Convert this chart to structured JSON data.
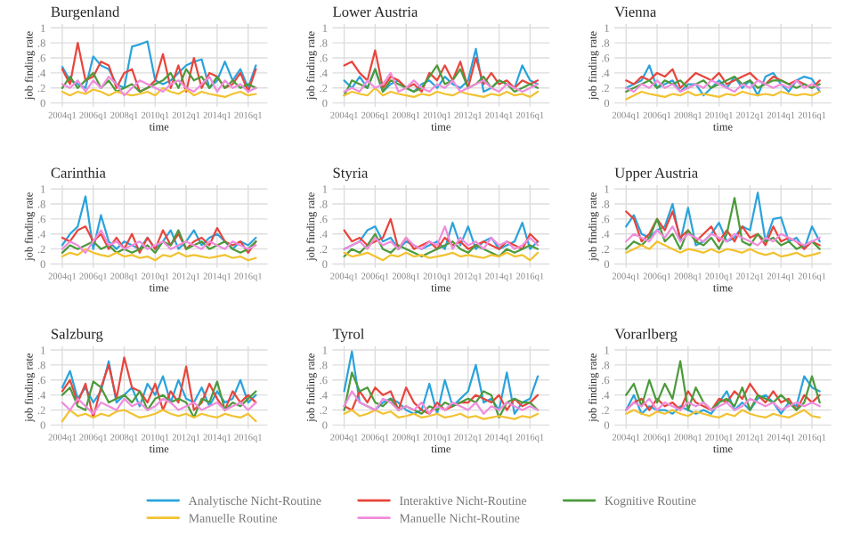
{
  "chart_data": [
    {
      "type": "line",
      "title": "Burgenland",
      "xlabel": "time",
      "ylabel": "job finding rate",
      "grid": true,
      "ylim": [
        -0.05,
        1.05
      ],
      "yticks": [
        0,
        {
          "value": 0.2,
          "label": ".2"
        },
        {
          "value": 0.4,
          "label": ".4"
        },
        {
          "value": 0.6,
          "label": ".6"
        },
        {
          "value": 0.8,
          "label": ".8"
        },
        1
      ],
      "categories": [
        "2004q1",
        null,
        null,
        null,
        "2006q1",
        null,
        null,
        null,
        "2008q1",
        null,
        null,
        null,
        "2010q1",
        null,
        null,
        null,
        "2012q1",
        null,
        null,
        null,
        "2014q1",
        null,
        null,
        null,
        "2016q1",
        null
      ],
      "series": [
        {
          "color": "#2ba3dc",
          "values": [
            0.48,
            0.3,
            0.25,
            0.2,
            0.62,
            0.5,
            0.45,
            0.25,
            0.2,
            0.75,
            0.78,
            0.82,
            0.3,
            0.25,
            0.3,
            0.4,
            0.5,
            0.55,
            0.58,
            0.2,
            0.3,
            0.55,
            0.3,
            0.45,
            0.2,
            0.5
          ]
        },
        {
          "color": "#e8453c",
          "values": [
            0.45,
            0.25,
            0.8,
            0.3,
            0.35,
            0.55,
            0.5,
            0.2,
            0.4,
            0.45,
            0.15,
            0.2,
            0.3,
            0.65,
            0.2,
            0.5,
            0.15,
            0.6,
            0.2,
            0.4,
            0.35,
            0.2,
            0.25,
            0.4,
            0.15,
            0.45
          ]
        },
        {
          "color": "#4c9a3c",
          "values": [
            0.2,
            0.35,
            0.2,
            0.3,
            0.4,
            0.2,
            0.3,
            0.15,
            0.2,
            0.25,
            0.15,
            0.2,
            0.25,
            0.3,
            0.4,
            0.2,
            0.45,
            0.3,
            0.35,
            0.2,
            0.35,
            0.2,
            0.3,
            0.2,
            0.25,
            0.2
          ]
        },
        {
          "color": "#f2c230",
          "values": [
            0.15,
            0.1,
            0.15,
            0.12,
            0.18,
            0.15,
            0.1,
            0.15,
            0.12,
            0.1,
            0.12,
            0.15,
            0.1,
            0.2,
            0.15,
            0.12,
            0.18,
            0.1,
            0.15,
            0.12,
            0.1,
            0.08,
            0.12,
            0.15,
            0.1,
            0.12
          ]
        },
        {
          "color": "#f08cdc",
          "values": [
            0.25,
            0.2,
            0.3,
            0.15,
            0.3,
            0.2,
            0.35,
            0.25,
            0.1,
            0.2,
            0.3,
            0.25,
            0.2,
            0.15,
            0.25,
            0.3,
            0.2,
            0.15,
            0.25,
            0.35,
            0.15,
            0.3,
            0.2,
            0.25,
            0.15,
            0.2
          ]
        }
      ]
    },
    {
      "type": "line",
      "title": "Lower Austria",
      "xlabel": "time",
      "ylabel": "job finding rate",
      "grid": true,
      "ylim": [
        -0.05,
        1.05
      ],
      "yticks": [
        0,
        {
          "value": 0.2,
          "label": ".2"
        },
        {
          "value": 0.4,
          "label": ".4"
        },
        {
          "value": 0.6,
          "label": ".6"
        },
        {
          "value": 0.8,
          "label": ".8"
        },
        1
      ],
      "categories": [
        "2004q1",
        null,
        null,
        null,
        "2006q1",
        null,
        null,
        null,
        "2008q1",
        null,
        null,
        null,
        "2010q1",
        null,
        null,
        null,
        "2012q1",
        null,
        null,
        null,
        "2014q1",
        null,
        null,
        null,
        "2016q1",
        null
      ],
      "series": [
        {
          "color": "#2ba3dc",
          "values": [
            0.3,
            0.2,
            0.35,
            0.2,
            0.45,
            0.15,
            0.25,
            0.3,
            0.2,
            0.15,
            0.25,
            0.3,
            0.2,
            0.35,
            0.25,
            0.2,
            0.3,
            0.72,
            0.15,
            0.2,
            0.3,
            0.25,
            0.2,
            0.5,
            0.3,
            0.25
          ]
        },
        {
          "color": "#e8453c",
          "values": [
            0.5,
            0.55,
            0.4,
            0.3,
            0.7,
            0.2,
            0.35,
            0.3,
            0.2,
            0.25,
            0.15,
            0.4,
            0.3,
            0.5,
            0.3,
            0.55,
            0.2,
            0.6,
            0.25,
            0.4,
            0.25,
            0.3,
            0.2,
            0.3,
            0.25,
            0.3
          ]
        },
        {
          "color": "#4c9a3c",
          "values": [
            0.1,
            0.3,
            0.25,
            0.2,
            0.45,
            0.15,
            0.3,
            0.25,
            0.2,
            0.15,
            0.2,
            0.35,
            0.5,
            0.25,
            0.3,
            0.45,
            0.2,
            0.25,
            0.35,
            0.2,
            0.3,
            0.25,
            0.15,
            0.2,
            0.25,
            0.2
          ]
        },
        {
          "color": "#f2c230",
          "values": [
            0.1,
            0.15,
            0.12,
            0.1,
            0.2,
            0.1,
            0.15,
            0.12,
            0.1,
            0.08,
            0.12,
            0.1,
            0.15,
            0.12,
            0.1,
            0.15,
            0.12,
            0.1,
            0.08,
            0.12,
            0.1,
            0.15,
            0.1,
            0.12,
            0.08,
            0.15
          ]
        },
        {
          "color": "#f08cdc",
          "values": [
            0.15,
            0.2,
            0.15,
            0.3,
            0.2,
            0.25,
            0.4,
            0.15,
            0.2,
            0.3,
            0.2,
            0.15,
            0.25,
            0.2,
            0.3,
            0.15,
            0.2,
            0.25,
            0.3,
            0.2,
            0.15,
            0.25,
            0.2,
            0.15,
            0.2,
            0.25
          ]
        }
      ]
    },
    {
      "type": "line",
      "title": "Vienna",
      "xlabel": "time",
      "ylabel": "job finding rate",
      "grid": true,
      "ylim": [
        -0.05,
        1.05
      ],
      "yticks": [
        0,
        {
          "value": 0.2,
          "label": ".2"
        },
        {
          "value": 0.4,
          "label": ".4"
        },
        {
          "value": 0.6,
          "label": ".6"
        },
        {
          "value": 0.8,
          "label": ".8"
        },
        1
      ],
      "categories": [
        "2004q1",
        null,
        null,
        null,
        "2006q1",
        null,
        null,
        null,
        "2008q1",
        null,
        null,
        null,
        "2010q1",
        null,
        null,
        null,
        "2012q1",
        null,
        null,
        null,
        "2014q1",
        null,
        null,
        null,
        "2016q1",
        null
      ],
      "series": [
        {
          "color": "#2ba3dc",
          "values": [
            0.2,
            0.25,
            0.3,
            0.5,
            0.2,
            0.25,
            0.3,
            0.15,
            0.25,
            0.25,
            0.1,
            0.2,
            0.3,
            0.2,
            0.35,
            0.2,
            0.3,
            0.1,
            0.35,
            0.4,
            0.25,
            0.15,
            0.3,
            0.35,
            0.32,
            0.15
          ]
        },
        {
          "color": "#e8453c",
          "values": [
            0.3,
            0.25,
            0.35,
            0.3,
            0.4,
            0.35,
            0.45,
            0.2,
            0.3,
            0.4,
            0.35,
            0.3,
            0.4,
            0.25,
            0.3,
            0.35,
            0.4,
            0.3,
            0.25,
            0.35,
            0.3,
            0.25,
            0.3,
            0.25,
            0.2,
            0.3
          ]
        },
        {
          "color": "#4c9a3c",
          "values": [
            0.15,
            0.2,
            0.25,
            0.3,
            0.2,
            0.3,
            0.25,
            0.3,
            0.2,
            0.25,
            0.3,
            0.2,
            0.25,
            0.3,
            0.35,
            0.25,
            0.3,
            0.2,
            0.25,
            0.3,
            0.3,
            0.25,
            0.2,
            0.25,
            0.2,
            0.25
          ]
        },
        {
          "color": "#f2c230",
          "values": [
            0.05,
            0.1,
            0.15,
            0.12,
            0.1,
            0.08,
            0.12,
            0.1,
            0.15,
            0.1,
            0.12,
            0.1,
            0.08,
            0.12,
            0.1,
            0.15,
            0.12,
            0.1,
            0.12,
            0.1,
            0.15,
            0.12,
            0.1,
            0.12,
            0.1,
            0.15
          ]
        },
        {
          "color": "#f08cdc",
          "values": [
            0.2,
            0.15,
            0.25,
            0.2,
            0.3,
            0.2,
            0.25,
            0.15,
            0.2,
            0.25,
            0.2,
            0.3,
            0.25,
            0.2,
            0.15,
            0.25,
            0.2,
            0.3,
            0.25,
            0.2,
            0.25,
            0.2,
            0.3,
            0.2,
            0.25,
            0.2
          ]
        }
      ]
    },
    {
      "type": "line",
      "title": "Carinthia",
      "xlabel": "time",
      "ylabel": "job finding rate",
      "grid": true,
      "ylim": [
        -0.05,
        1.05
      ],
      "yticks": [
        0,
        {
          "value": 0.2,
          "label": ".2"
        },
        {
          "value": 0.4,
          "label": ".4"
        },
        {
          "value": 0.6,
          "label": ".6"
        },
        {
          "value": 0.8,
          "label": ".8"
        },
        1
      ],
      "categories": [
        "2004q1",
        null,
        null,
        null,
        "2006q1",
        null,
        null,
        null,
        "2008q1",
        null,
        null,
        null,
        "2010q1",
        null,
        null,
        null,
        "2012q1",
        null,
        null,
        null,
        "2014q1",
        null,
        null,
        null,
        "2016q1",
        null
      ],
      "series": [
        {
          "color": "#2ba3dc",
          "values": [
            0.25,
            0.4,
            0.5,
            0.9,
            0.2,
            0.65,
            0.3,
            0.2,
            0.3,
            0.25,
            0.2,
            0.35,
            0.2,
            0.3,
            0.45,
            0.2,
            0.3,
            0.45,
            0.25,
            0.35,
            0.4,
            0.3,
            0.2,
            0.3,
            0.25,
            0.35
          ]
        },
        {
          "color": "#e8453c",
          "values": [
            0.35,
            0.3,
            0.45,
            0.5,
            0.3,
            0.4,
            0.2,
            0.35,
            0.2,
            0.4,
            0.15,
            0.35,
            0.2,
            0.45,
            0.25,
            0.4,
            0.2,
            0.3,
            0.35,
            0.25,
            0.48,
            0.3,
            0.25,
            0.3,
            0.15,
            0.3
          ]
        },
        {
          "color": "#4c9a3c",
          "values": [
            0.15,
            0.25,
            0.2,
            0.25,
            0.3,
            0.2,
            0.25,
            0.15,
            0.2,
            0.15,
            0.2,
            0.25,
            0.15,
            0.3,
            0.25,
            0.45,
            0.2,
            0.25,
            0.3,
            0.2,
            0.25,
            0.3,
            0.2,
            0.15,
            0.2,
            0.3
          ]
        },
        {
          "color": "#f2c230",
          "values": [
            0.1,
            0.15,
            0.12,
            0.2,
            0.15,
            0.12,
            0.1,
            0.15,
            0.1,
            0.12,
            0.08,
            0.1,
            0.05,
            0.12,
            0.1,
            0.15,
            0.1,
            0.12,
            0.1,
            0.08,
            0.1,
            0.12,
            0.08,
            0.1,
            0.05,
            0.08
          ]
        },
        {
          "color": "#f08cdc",
          "values": [
            0.2,
            0.3,
            0.25,
            0.15,
            0.3,
            0.45,
            0.25,
            0.3,
            0.2,
            0.25,
            0.3,
            0.2,
            0.25,
            0.3,
            0.2,
            0.25,
            0.3,
            0.25,
            0.2,
            0.3,
            0.25,
            0.2,
            0.3,
            0.25,
            0.2,
            0.25
          ]
        }
      ]
    },
    {
      "type": "line",
      "title": "Styria",
      "xlabel": "time",
      "ylabel": "job finding rate",
      "grid": true,
      "ylim": [
        -0.05,
        1.05
      ],
      "yticks": [
        0,
        {
          "value": 0.2,
          "label": ".2"
        },
        {
          "value": 0.4,
          "label": ".4"
        },
        {
          "value": 0.6,
          "label": ".6"
        },
        {
          "value": 0.8,
          "label": ".8"
        },
        1
      ],
      "categories": [
        "2004q1",
        null,
        null,
        null,
        "2006q1",
        null,
        null,
        null,
        "2008q1",
        null,
        null,
        null,
        "2010q1",
        null,
        null,
        null,
        "2012q1",
        null,
        null,
        null,
        "2014q1",
        null,
        null,
        null,
        "2016q1",
        null
      ],
      "series": [
        {
          "color": "#2ba3dc",
          "values": [
            0.2,
            0.25,
            0.3,
            0.45,
            0.5,
            0.3,
            0.35,
            0.2,
            0.3,
            0.25,
            0.2,
            0.25,
            0.3,
            0.2,
            0.55,
            0.25,
            0.5,
            0.2,
            0.3,
            0.35,
            0.2,
            0.25,
            0.3,
            0.55,
            0.2,
            0.3
          ]
        },
        {
          "color": "#e8453c",
          "values": [
            0.45,
            0.3,
            0.35,
            0.25,
            0.3,
            0.35,
            0.6,
            0.2,
            0.35,
            0.2,
            0.25,
            0.3,
            0.2,
            0.35,
            0.25,
            0.3,
            0.2,
            0.25,
            0.3,
            0.25,
            0.2,
            0.3,
            0.25,
            0.2,
            0.4,
            0.3
          ]
        },
        {
          "color": "#4c9a3c",
          "values": [
            0.1,
            0.2,
            0.15,
            0.25,
            0.4,
            0.2,
            0.15,
            0.25,
            0.2,
            0.15,
            0.1,
            0.15,
            0.2,
            0.25,
            0.3,
            0.2,
            0.15,
            0.25,
            0.2,
            0.15,
            0.1,
            0.2,
            0.15,
            0.2,
            0.25,
            0.2
          ]
        },
        {
          "color": "#f2c230",
          "values": [
            0.15,
            0.1,
            0.12,
            0.15,
            0.1,
            0.05,
            0.12,
            0.1,
            0.15,
            0.1,
            0.12,
            0.08,
            0.1,
            0.12,
            0.15,
            0.1,
            0.12,
            0.1,
            0.08,
            0.12,
            0.1,
            0.15,
            0.1,
            0.12,
            0.05,
            0.15
          ]
        },
        {
          "color": "#f08cdc",
          "values": [
            0.2,
            0.25,
            0.3,
            0.2,
            0.35,
            0.25,
            0.3,
            0.2,
            0.35,
            0.25,
            0.2,
            0.3,
            0.25,
            0.5,
            0.2,
            0.35,
            0.25,
            0.3,
            0.2,
            0.35,
            0.25,
            0.3,
            0.2,
            0.25,
            0.35,
            0.25
          ]
        }
      ]
    },
    {
      "type": "line",
      "title": "Upper Austria",
      "xlabel": "time",
      "ylabel": "job finding rate",
      "grid": true,
      "ylim": [
        -0.05,
        1.05
      ],
      "yticks": [
        0,
        {
          "value": 0.2,
          "label": ".2"
        },
        {
          "value": 0.4,
          "label": ".4"
        },
        {
          "value": 0.6,
          "label": ".6"
        },
        {
          "value": 0.8,
          "label": ".8"
        },
        1
      ],
      "categories": [
        "2004q1",
        null,
        null,
        null,
        "2006q1",
        null,
        null,
        null,
        "2008q1",
        null,
        null,
        null,
        "2010q1",
        null,
        null,
        null,
        "2012q1",
        null,
        null,
        null,
        "2014q1",
        null,
        null,
        null,
        "2016q1",
        null
      ],
      "series": [
        {
          "color": "#2ba3dc",
          "values": [
            0.5,
            0.65,
            0.4,
            0.35,
            0.45,
            0.5,
            0.8,
            0.3,
            0.75,
            0.25,
            0.3,
            0.4,
            0.55,
            0.3,
            0.35,
            0.5,
            0.45,
            0.95,
            0.3,
            0.6,
            0.62,
            0.3,
            0.35,
            0.2,
            0.5,
            0.3
          ]
        },
        {
          "color": "#e8453c",
          "values": [
            0.7,
            0.6,
            0.3,
            0.4,
            0.6,
            0.45,
            0.7,
            0.35,
            0.45,
            0.3,
            0.4,
            0.5,
            0.3,
            0.45,
            0.3,
            0.5,
            0.35,
            0.4,
            0.25,
            0.5,
            0.3,
            0.35,
            0.3,
            0.2,
            0.3,
            0.25
          ]
        },
        {
          "color": "#4c9a3c",
          "values": [
            0.2,
            0.3,
            0.25,
            0.35,
            0.6,
            0.3,
            0.4,
            0.2,
            0.45,
            0.3,
            0.25,
            0.35,
            0.2,
            0.4,
            0.88,
            0.3,
            0.25,
            0.4,
            0.3,
            0.35,
            0.25,
            0.3,
            0.2,
            0.25,
            0.3,
            0.2
          ]
        },
        {
          "color": "#f2c230",
          "values": [
            0.15,
            0.2,
            0.25,
            0.2,
            0.3,
            0.25,
            0.2,
            0.15,
            0.2,
            0.18,
            0.15,
            0.2,
            0.15,
            0.2,
            0.18,
            0.15,
            0.2,
            0.15,
            0.12,
            0.15,
            0.1,
            0.12,
            0.15,
            0.1,
            0.12,
            0.15
          ]
        },
        {
          "color": "#f08cdc",
          "values": [
            0.3,
            0.4,
            0.35,
            0.3,
            0.45,
            0.35,
            0.5,
            0.3,
            0.4,
            0.35,
            0.3,
            0.4,
            0.35,
            0.3,
            0.4,
            0.35,
            0.3,
            0.25,
            0.35,
            0.3,
            0.4,
            0.35,
            0.3,
            0.25,
            0.3,
            0.35
          ]
        }
      ]
    },
    {
      "type": "line",
      "title": "Salzburg",
      "xlabel": "time",
      "ylabel": "job finding rate",
      "grid": true,
      "ylim": [
        -0.05,
        1.05
      ],
      "yticks": [
        0,
        {
          "value": 0.2,
          "label": ".2"
        },
        {
          "value": 0.4,
          "label": ".4"
        },
        {
          "value": 0.6,
          "label": ".6"
        },
        {
          "value": 0.8,
          "label": ".8"
        },
        1
      ],
      "categories": [
        "2004q1",
        null,
        null,
        null,
        "2006q1",
        null,
        null,
        null,
        "2008q1",
        null,
        null,
        null,
        "2010q1",
        null,
        null,
        null,
        "2012q1",
        null,
        null,
        null,
        "2014q1",
        null,
        null,
        null,
        "2016q1",
        null
      ],
      "series": [
        {
          "color": "#2ba3dc",
          "values": [
            0.5,
            0.72,
            0.35,
            0.5,
            0.3,
            0.45,
            0.85,
            0.3,
            0.4,
            0.5,
            0.25,
            0.55,
            0.4,
            0.65,
            0.3,
            0.6,
            0.35,
            0.3,
            0.5,
            0.25,
            0.45,
            0.3,
            0.35,
            0.6,
            0.3,
            0.4
          ]
        },
        {
          "color": "#e8453c",
          "values": [
            0.45,
            0.6,
            0.3,
            0.55,
            0.1,
            0.5,
            0.8,
            0.35,
            0.9,
            0.5,
            0.45,
            0.3,
            0.55,
            0.2,
            0.45,
            0.3,
            0.78,
            0.2,
            0.3,
            0.55,
            0.35,
            0.2,
            0.45,
            0.3,
            0.4,
            0.3
          ]
        },
        {
          "color": "#4c9a3c",
          "values": [
            0.4,
            0.5,
            0.25,
            0.2,
            0.58,
            0.5,
            0.3,
            0.35,
            0.4,
            0.3,
            0.45,
            0.2,
            0.35,
            0.4,
            0.3,
            0.35,
            0.3,
            0.1,
            0.35,
            0.3,
            0.58,
            0.2,
            0.3,
            0.25,
            0.35,
            0.45
          ]
        },
        {
          "color": "#f2c230",
          "values": [
            0.05,
            0.2,
            0.12,
            0.15,
            0.1,
            0.15,
            0.12,
            0.18,
            0.2,
            0.15,
            0.1,
            0.12,
            0.15,
            0.2,
            0.15,
            0.12,
            0.15,
            0.1,
            0.15,
            0.12,
            0.1,
            0.15,
            0.12,
            0.1,
            0.15,
            0.05
          ]
        },
        {
          "color": "#f08cdc",
          "values": [
            0.3,
            0.2,
            0.35,
            0.25,
            0.15,
            0.3,
            0.25,
            0.2,
            0.35,
            0.25,
            0.3,
            0.2,
            0.25,
            0.35,
            0.3,
            0.2,
            0.25,
            0.3,
            0.2,
            0.25,
            0.3,
            0.2,
            0.25,
            0.3,
            0.2,
            0.3
          ]
        }
      ]
    },
    {
      "type": "line",
      "title": "Tyrol",
      "xlabel": "time",
      "ylabel": "job finding rate",
      "grid": true,
      "ylim": [
        -0.05,
        1.05
      ],
      "yticks": [
        0,
        {
          "value": 0.2,
          "label": ".2"
        },
        {
          "value": 0.4,
          "label": ".4"
        },
        {
          "value": 0.6,
          "label": ".6"
        },
        {
          "value": 0.8,
          "label": ".8"
        },
        1
      ],
      "categories": [
        "2004q1",
        null,
        null,
        null,
        "2006q1",
        null,
        null,
        null,
        "2008q1",
        null,
        null,
        null,
        "2010q1",
        null,
        null,
        null,
        "2012q1",
        null,
        null,
        null,
        "2014q1",
        null,
        null,
        null,
        "2016q1",
        null
      ],
      "series": [
        {
          "color": "#2ba3dc",
          "values": [
            0.45,
            0.98,
            0.3,
            0.25,
            0.2,
            0.3,
            0.35,
            0.3,
            0.2,
            0.15,
            0.2,
            0.55,
            0.15,
            0.6,
            0.25,
            0.35,
            0.45,
            0.8,
            0.3,
            0.35,
            0.2,
            0.7,
            0.15,
            0.3,
            0.35,
            0.65
          ]
        },
        {
          "color": "#e8453c",
          "values": [
            0.25,
            0.2,
            0.45,
            0.3,
            0.5,
            0.4,
            0.45,
            0.2,
            0.5,
            0.3,
            0.2,
            0.15,
            0.3,
            0.2,
            0.25,
            0.3,
            0.3,
            0.4,
            0.35,
            0.3,
            0.4,
            0.2,
            0.35,
            0.25,
            0.3,
            0.4
          ]
        },
        {
          "color": "#4c9a3c",
          "values": [
            0.2,
            0.7,
            0.45,
            0.5,
            0.3,
            0.25,
            0.35,
            0.2,
            0.25,
            0.2,
            0.15,
            0.25,
            0.2,
            0.3,
            0.25,
            0.3,
            0.35,
            0.3,
            0.45,
            0.4,
            0.1,
            0.3,
            0.35,
            0.3,
            0.3,
            0.2
          ]
        },
        {
          "color": "#f2c230",
          "values": [
            0.15,
            0.2,
            0.12,
            0.15,
            0.2,
            0.15,
            0.18,
            0.1,
            0.12,
            0.15,
            0.1,
            0.12,
            0.15,
            0.1,
            0.12,
            0.15,
            0.1,
            0.12,
            0.08,
            0.1,
            0.12,
            0.1,
            0.08,
            0.12,
            0.1,
            0.15
          ]
        },
        {
          "color": "#f08cdc",
          "values": [
            0.25,
            0.45,
            0.3,
            0.25,
            0.2,
            0.35,
            0.3,
            0.2,
            0.25,
            0.2,
            0.3,
            0.15,
            0.25,
            0.2,
            0.3,
            0.25,
            0.2,
            0.3,
            0.15,
            0.25,
            0.2,
            0.3,
            0.25,
            0.2,
            0.25,
            0.2
          ]
        }
      ]
    },
    {
      "type": "line",
      "title": "Vorarlberg",
      "xlabel": "time",
      "ylabel": "job finding rate",
      "grid": true,
      "legend": "bottom",
      "ylim": [
        -0.05,
        1.05
      ],
      "yticks": [
        0,
        {
          "value": 0.2,
          "label": ".2"
        },
        {
          "value": 0.4,
          "label": ".4"
        },
        {
          "value": 0.6,
          "label": ".6"
        },
        {
          "value": 0.8,
          "label": ".8"
        },
        1
      ],
      "categories": [
        "2004q1",
        null,
        null,
        null,
        "2006q1",
        null,
        null,
        null,
        "2008q1",
        null,
        null,
        null,
        "2010q1",
        null,
        null,
        null,
        "2012q1",
        null,
        null,
        null,
        "2014q1",
        null,
        null,
        null,
        "2016q1",
        null
      ],
      "series": [
        {
          "name": "Analytische Nicht-Routine",
          "color": "#2ba3dc",
          "values": [
            0.2,
            0.4,
            0.15,
            0.25,
            0.2,
            0.2,
            0.15,
            0.25,
            0.2,
            0.15,
            0.2,
            0.15,
            0.3,
            0.45,
            0.2,
            0.3,
            0.2,
            0.35,
            0.4,
            0.3,
            0.15,
            0.3,
            0.25,
            0.65,
            0.5,
            0.45
          ]
        },
        {
          "name": "Interaktive Nicht-Routine",
          "color": "#e8453c",
          "values": [
            0.2,
            0.3,
            0.35,
            0.2,
            0.35,
            0.25,
            0.3,
            0.2,
            0.45,
            0.3,
            0.25,
            0.2,
            0.35,
            0.3,
            0.45,
            0.35,
            0.55,
            0.4,
            0.3,
            0.45,
            0.3,
            0.35,
            0.2,
            0.4,
            0.3,
            0.4
          ]
        },
        {
          "name": "Kognitive Routine",
          "color": "#4c9a3c",
          "values": [
            0.4,
            0.55,
            0.25,
            0.6,
            0.3,
            0.55,
            0.35,
            0.85,
            0.2,
            0.5,
            0.3,
            0.2,
            0.3,
            0.35,
            0.25,
            0.5,
            0.2,
            0.4,
            0.35,
            0.3,
            0.4,
            0.3,
            0.2,
            0.3,
            0.65,
            0.3
          ]
        },
        {
          "name": "Manuelle Routine",
          "color": "#f2c230",
          "values": [
            0.15,
            0.2,
            0.15,
            0.12,
            0.18,
            0.15,
            0.2,
            0.15,
            0.12,
            0.18,
            0.15,
            0.12,
            0.1,
            0.15,
            0.12,
            0.2,
            0.15,
            0.12,
            0.1,
            0.15,
            0.12,
            0.1,
            0.15,
            0.2,
            0.12,
            0.1
          ]
        },
        {
          "name": "Manuelle Nicht-Routine",
          "color": "#f08cdc",
          "values": [
            0.2,
            0.3,
            0.25,
            0.35,
            0.2,
            0.3,
            0.25,
            0.2,
            0.3,
            0.25,
            0.3,
            0.2,
            0.25,
            0.3,
            0.2,
            0.25,
            0.35,
            0.3,
            0.25,
            0.3,
            0.2,
            0.25,
            0.3,
            0.25,
            0.3,
            0.25
          ]
        }
      ]
    }
  ]
}
